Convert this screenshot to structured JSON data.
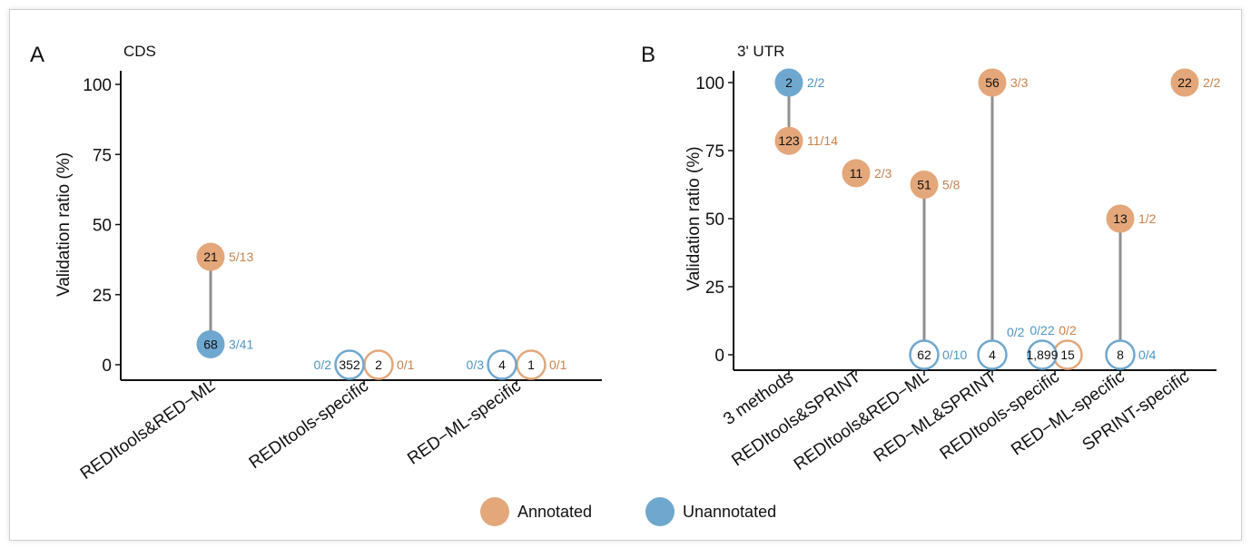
{
  "colors": {
    "annotated": "#E3A77A",
    "annotated_text": "#C8824C",
    "unannotated": "#6FA8CF",
    "unannotated_text": "#4E95C2",
    "segment": "#8f8f8f",
    "axis": "#111111"
  },
  "legend": {
    "position": "bottom-center",
    "items": [
      {
        "label": "Annotated",
        "color_key": "annotated"
      },
      {
        "label": "Unannotated",
        "color_key": "unannotated"
      }
    ]
  },
  "chart_data": [
    {
      "type": "scatter",
      "panel_letter": "A",
      "title": "CDS",
      "ylabel": "Validation ratio (%)",
      "ylim": [
        0,
        100
      ],
      "yticks": [
        "0",
        "25",
        "50",
        "75",
        "100"
      ],
      "categories": [
        "REDItools&RED−ML",
        "REDItools-specific",
        "RED−ML-specific"
      ],
      "series": [
        {
          "name": "Annotated",
          "points": [
            {
              "category": "REDItools&RED−ML",
              "y": 38.5,
              "count": "21",
              "ratio": "5/13"
            },
            {
              "category": "REDItools-specific",
              "y": 0,
              "count": "2",
              "ratio": "0/1"
            },
            {
              "category": "RED−ML-specific",
              "y": 0,
              "count": "1",
              "ratio": "0/1"
            }
          ]
        },
        {
          "name": "Unannotated",
          "points": [
            {
              "category": "REDItools&RED−ML",
              "y": 7.3,
              "count": "68",
              "ratio": "3/41"
            },
            {
              "category": "REDItools-specific",
              "y": 0,
              "count": "352",
              "ratio": "0/2"
            },
            {
              "category": "RED−ML-specific",
              "y": 0,
              "count": "4",
              "ratio": "0/3"
            }
          ]
        }
      ]
    },
    {
      "type": "scatter",
      "panel_letter": "B",
      "title": "3' UTR",
      "ylabel": "Validation ratio (%)",
      "ylim": [
        0,
        100
      ],
      "yticks": [
        "0",
        "25",
        "50",
        "75",
        "100"
      ],
      "categories": [
        "3 methods",
        "REDItools&SPRINT",
        "REDItools&RED−ML",
        "RED−ML&SPRINT",
        "REDItools-specific",
        "RED−ML-specific",
        "SPRINT-specific"
      ],
      "series": [
        {
          "name": "Annotated",
          "points": [
            {
              "category": "3 methods",
              "y": 78.6,
              "count": "123",
              "ratio": "11/14"
            },
            {
              "category": "REDItools&SPRINT",
              "y": 66.7,
              "count": "11",
              "ratio": "2/3"
            },
            {
              "category": "REDItools&RED−ML",
              "y": 62.5,
              "count": "51",
              "ratio": "5/8"
            },
            {
              "category": "RED−ML&SPRINT",
              "y": 100,
              "count": "56",
              "ratio": "3/3"
            },
            {
              "category": "REDItools-specific",
              "y": 0,
              "count": "15",
              "ratio": "0/2"
            },
            {
              "category": "RED−ML-specific",
              "y": 50,
              "count": "13",
              "ratio": "1/2"
            },
            {
              "category": "SPRINT-specific",
              "y": 100,
              "count": "22",
              "ratio": "2/2"
            }
          ]
        },
        {
          "name": "Unannotated",
          "points": [
            {
              "category": "3 methods",
              "y": 100,
              "count": "2",
              "ratio": "2/2"
            },
            {
              "category": "REDItools&RED−ML",
              "y": 0,
              "count": "62",
              "ratio": "0/10"
            },
            {
              "category": "RED−ML&SPRINT",
              "y": 0,
              "count": "4",
              "ratio": "0/2"
            },
            {
              "category": "REDItools-specific",
              "y": 0,
              "count": "1,899",
              "ratio": "0/22"
            },
            {
              "category": "RED−ML-specific",
              "y": 0,
              "count": "8",
              "ratio": "0/4"
            }
          ]
        }
      ]
    }
  ]
}
